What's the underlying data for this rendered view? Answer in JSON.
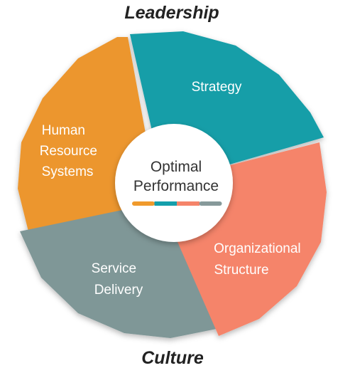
{
  "top_label": "Leadership",
  "bottom_label": "Culture",
  "center": {
    "line1": "Optimal",
    "line2": "Performance",
    "bar_colors": [
      "#f09a2c",
      "#149fab",
      "#f5846a",
      "#86999a"
    ]
  },
  "segments": [
    {
      "id": "strategy",
      "lines": [
        "Strategy"
      ],
      "color": "#139ea8"
    },
    {
      "id": "organizational-structure",
      "lines": [
        "Organizational",
        "Structure"
      ],
      "color": "#f5846a"
    },
    {
      "id": "service-delivery",
      "lines": [
        "Service",
        "Delivery"
      ],
      "color": "#7f9797"
    },
    {
      "id": "human-resource-systems",
      "lines": [
        "Human",
        "Resource",
        "Systems"
      ],
      "color": "#ec962d"
    }
  ]
}
